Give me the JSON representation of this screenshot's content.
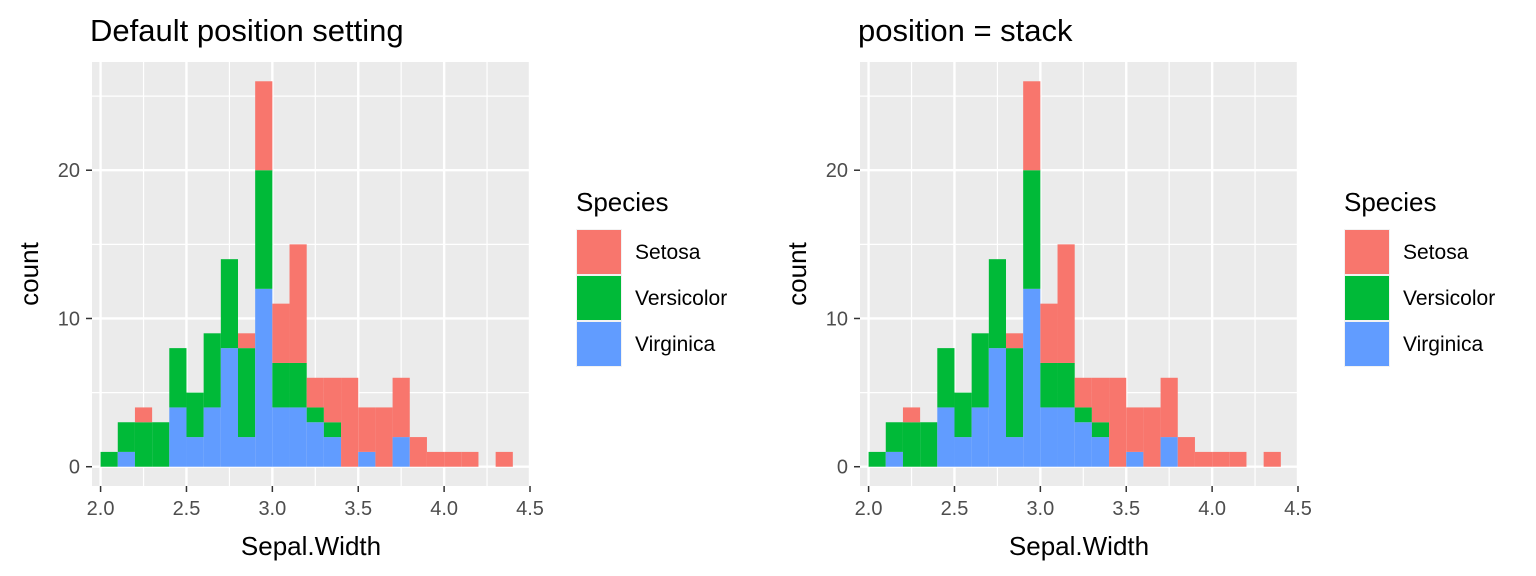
{
  "chart_data": [
    {
      "type": "bar",
      "subtype": "stacked-histogram",
      "title": "Default position setting",
      "xlabel": "Sepal.Width",
      "ylabel": "count",
      "xlim": [
        1.95,
        4.5
      ],
      "ylim": [
        -1.3,
        27.3
      ],
      "xticks": [
        2.0,
        2.5,
        3.0,
        3.5,
        4.0,
        4.5
      ],
      "xtick_labels": [
        "2.0",
        "2.5",
        "3.0",
        "3.5",
        "4.0",
        "4.5"
      ],
      "yticks": [
        0,
        10,
        20
      ],
      "ytick_labels": [
        "0",
        "10",
        "20"
      ],
      "bin_width": 0.1,
      "bins_left": [
        2.0,
        2.1,
        2.2,
        2.3,
        2.4,
        2.5,
        2.6,
        2.7,
        2.8,
        2.9,
        3.0,
        3.1,
        3.2,
        3.3,
        3.4,
        3.5,
        3.6,
        3.7,
        3.8,
        3.9,
        4.0,
        4.1,
        4.2,
        4.3
      ],
      "series": [
        {
          "name": "Virginica",
          "color": "#619CFF",
          "values": [
            0,
            1,
            0,
            0,
            4,
            2,
            4,
            8,
            2,
            12,
            4,
            4,
            3,
            2,
            0,
            1,
            0,
            2,
            0,
            0,
            0,
            0,
            0,
            0
          ]
        },
        {
          "name": "Versicolor",
          "color": "#00BA38",
          "values": [
            1,
            2,
            3,
            3,
            4,
            3,
            5,
            6,
            6,
            8,
            3,
            3,
            1,
            1,
            0,
            0,
            0,
            0,
            0,
            0,
            0,
            0,
            0,
            0
          ]
        },
        {
          "name": "Setosa",
          "color": "#F8766D",
          "values": [
            0,
            0,
            1,
            0,
            0,
            0,
            0,
            0,
            1,
            6,
            4,
            8,
            2,
            3,
            6,
            3,
            4,
            4,
            2,
            1,
            1,
            1,
            0,
            1
          ]
        }
      ],
      "legend": {
        "title": "Species",
        "position": "right",
        "items": [
          "Setosa",
          "Versicolor",
          "Virginica"
        ]
      },
      "grid": true
    },
    {
      "type": "bar",
      "subtype": "stacked-histogram",
      "title": "position = stack",
      "xlabel": "Sepal.Width",
      "ylabel": "count",
      "xlim": [
        1.95,
        4.5
      ],
      "ylim": [
        -1.3,
        27.3
      ],
      "xticks": [
        2.0,
        2.5,
        3.0,
        3.5,
        4.0,
        4.5
      ],
      "xtick_labels": [
        "2.0",
        "2.5",
        "3.0",
        "3.5",
        "4.0",
        "4.5"
      ],
      "yticks": [
        0,
        10,
        20
      ],
      "ytick_labels": [
        "0",
        "10",
        "20"
      ],
      "bin_width": 0.1,
      "bins_left": [
        2.0,
        2.1,
        2.2,
        2.3,
        2.4,
        2.5,
        2.6,
        2.7,
        2.8,
        2.9,
        3.0,
        3.1,
        3.2,
        3.3,
        3.4,
        3.5,
        3.6,
        3.7,
        3.8,
        3.9,
        4.0,
        4.1,
        4.2,
        4.3
      ],
      "series": [
        {
          "name": "Virginica",
          "color": "#619CFF",
          "values": [
            0,
            1,
            0,
            0,
            4,
            2,
            4,
            8,
            2,
            12,
            4,
            4,
            3,
            2,
            0,
            1,
            0,
            2,
            0,
            0,
            0,
            0,
            0,
            0
          ]
        },
        {
          "name": "Versicolor",
          "color": "#00BA38",
          "values": [
            1,
            2,
            3,
            3,
            4,
            3,
            5,
            6,
            6,
            8,
            3,
            3,
            1,
            1,
            0,
            0,
            0,
            0,
            0,
            0,
            0,
            0,
            0,
            0
          ]
        },
        {
          "name": "Setosa",
          "color": "#F8766D",
          "values": [
            0,
            0,
            1,
            0,
            0,
            0,
            0,
            0,
            1,
            6,
            4,
            8,
            2,
            3,
            6,
            3,
            4,
            4,
            2,
            1,
            1,
            1,
            0,
            1
          ]
        }
      ],
      "legend": {
        "title": "Species",
        "position": "right",
        "items": [
          "Setosa",
          "Versicolor",
          "Virginica"
        ]
      },
      "grid": true
    }
  ],
  "theme": {
    "panel_background": "#EBEBEB",
    "grid_color": "#FFFFFF",
    "tick_color": "#333333",
    "tick_label_color": "#4D4D4D"
  }
}
